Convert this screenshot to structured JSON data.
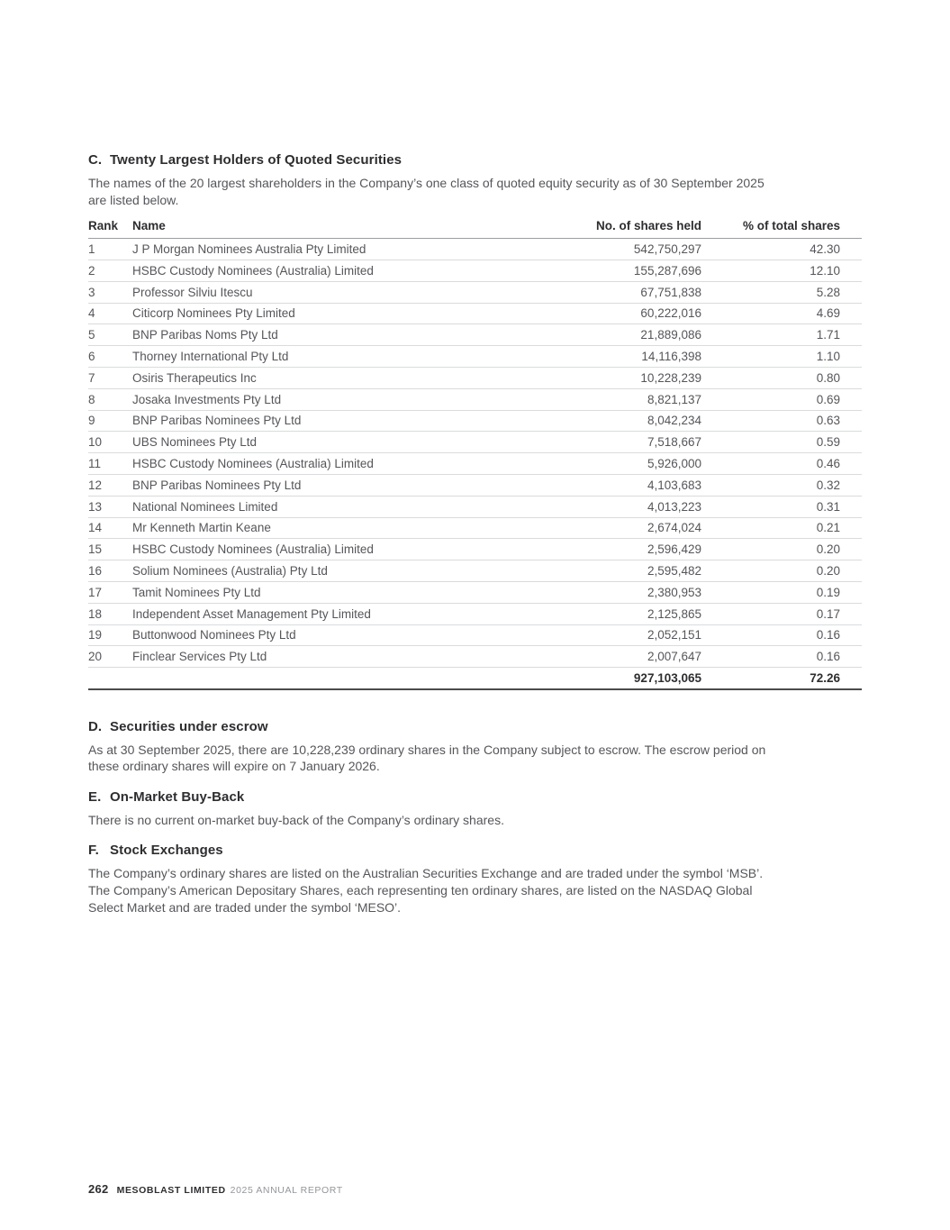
{
  "colors": {
    "heading_text": "#2e2e31",
    "body_text": "#55565a",
    "row_divider": "#dadbdc",
    "header_underline": "#9b9da0",
    "total_underline": "#4a4b4d",
    "page_background": "#ffffff"
  },
  "sections": {
    "c": {
      "letter": "C.",
      "title": "Twenty Largest Holders of Quoted Securities",
      "intro_lines": [
        "The names of the 20 largest shareholders in the Company’s one class of quoted equity security as of 30 September 2025",
        "are listed below."
      ]
    },
    "d": {
      "letter": "D.",
      "title": "Securities under escrow",
      "body_lines": [
        "As at 30 September 2025, there are 10,228,239 ordinary shares in the Company subject to escrow. The escrow period on",
        "these ordinary shares will expire on 7 January 2026."
      ]
    },
    "e": {
      "letter": "E.",
      "title": "On-Market Buy-Back",
      "body_lines": [
        "There is no current on-market buy-back of the Company’s ordinary shares."
      ]
    },
    "f": {
      "letter": "F.",
      "title": "Stock Exchanges",
      "body_lines": [
        "The Company’s ordinary shares are listed on the Australian Securities Exchange and are traded under the symbol ‘MSB’.",
        "The Company’s American Depositary Shares, each representing ten ordinary shares, are listed on the NASDAQ Global",
        "Select Market and are traded under the symbol ‘MESO’."
      ]
    }
  },
  "table": {
    "headers": {
      "rank": "Rank",
      "name": "Name",
      "shares": "No. of shares held",
      "percent": "% of total shares"
    },
    "rows": [
      {
        "rank": "1",
        "name": "J P Morgan Nominees Australia Pty Limited",
        "shares": "542,750,297",
        "percent": "42.30"
      },
      {
        "rank": "2",
        "name": "HSBC Custody Nominees (Australia) Limited",
        "shares": "155,287,696",
        "percent": "12.10"
      },
      {
        "rank": "3",
        "name": "Professor Silviu Itescu",
        "shares": "67,751,838",
        "percent": "5.28"
      },
      {
        "rank": "4",
        "name": "Citicorp Nominees Pty Limited",
        "shares": "60,222,016",
        "percent": "4.69"
      },
      {
        "rank": "5",
        "name": "BNP Paribas Noms Pty Ltd",
        "shares": "21,889,086",
        "percent": "1.71"
      },
      {
        "rank": "6",
        "name": "Thorney International Pty Ltd",
        "shares": "14,116,398",
        "percent": "1.10"
      },
      {
        "rank": "7",
        "name": "Osiris Therapeutics Inc",
        "shares": "10,228,239",
        "percent": "0.80"
      },
      {
        "rank": "8",
        "name": "Josaka Investments Pty Ltd",
        "shares": "8,821,137",
        "percent": "0.69"
      },
      {
        "rank": "9",
        "name": "BNP Paribas Nominees Pty Ltd",
        "shares": "8,042,234",
        "percent": "0.63"
      },
      {
        "rank": "10",
        "name": "UBS Nominees Pty Ltd",
        "shares": "7,518,667",
        "percent": "0.59"
      },
      {
        "rank": "11",
        "name": "HSBC Custody Nominees (Australia) Limited",
        "shares": "5,926,000",
        "percent": "0.46"
      },
      {
        "rank": "12",
        "name": "BNP Paribas Nominees Pty Ltd",
        "shares": "4,103,683",
        "percent": "0.32"
      },
      {
        "rank": "13",
        "name": "National Nominees Limited",
        "shares": "4,013,223",
        "percent": "0.31"
      },
      {
        "rank": "14",
        "name": "Mr Kenneth Martin Keane",
        "shares": "2,674,024",
        "percent": "0.21"
      },
      {
        "rank": "15",
        "name": "HSBC Custody Nominees (Australia) Limited",
        "shares": "2,596,429",
        "percent": "0.20"
      },
      {
        "rank": "16",
        "name": "Solium Nominees (Australia) Pty Ltd",
        "shares": "2,595,482",
        "percent": "0.20"
      },
      {
        "rank": "17",
        "name": "Tamit Nominees Pty Ltd",
        "shares": "2,380,953",
        "percent": "0.19"
      },
      {
        "rank": "18",
        "name": "Independent Asset Management Pty Limited",
        "shares": "2,125,865",
        "percent": "0.17"
      },
      {
        "rank": "19",
        "name": "Buttonwood Nominees Pty Ltd",
        "shares": "2,052,151",
        "percent": "0.16"
      },
      {
        "rank": "20",
        "name": "Finclear Services Pty Ltd",
        "shares": "2,007,647",
        "percent": "0.16"
      }
    ],
    "total": {
      "shares": "927,103,065",
      "percent": "72.26"
    }
  },
  "footer": {
    "page_number": "262",
    "company": "MESOBLAST LIMITED",
    "report": "2025 ANNUAL REPORT"
  }
}
